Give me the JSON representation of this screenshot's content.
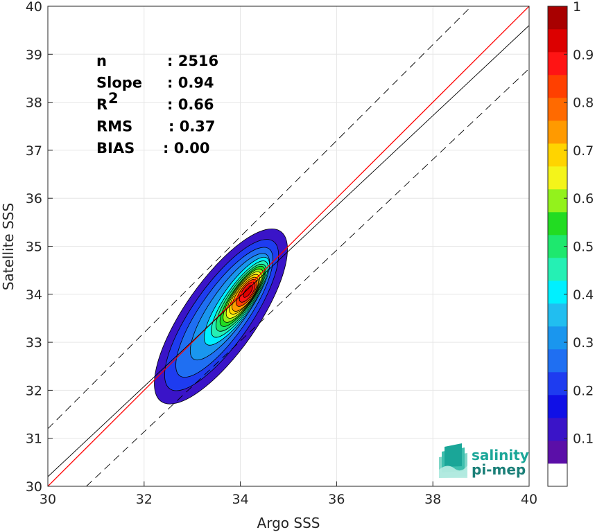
{
  "chart_data": {
    "type": "contour",
    "xlabel": "Argo SSS",
    "ylabel": "Satellite SSS",
    "xlim": [
      30,
      40
    ],
    "ylim": [
      30,
      40
    ],
    "xticks": [
      "30",
      "32",
      "34",
      "36",
      "38",
      "40"
    ],
    "yticks": [
      "30",
      "31",
      "32",
      "33",
      "34",
      "35",
      "36",
      "37",
      "38",
      "39",
      "40"
    ],
    "grid": true,
    "density_peak": {
      "x": 34.1,
      "y": 34.0
    },
    "lines": [
      {
        "role": "one-to-one",
        "color": "#ff0000",
        "style": "solid",
        "points": [
          [
            30,
            30
          ],
          [
            40,
            40
          ]
        ]
      },
      {
        "role": "fit",
        "color": "#000000",
        "style": "solid",
        "points": [
          [
            30,
            30.2
          ],
          [
            40,
            39.6
          ]
        ]
      },
      {
        "role": "upper-bound",
        "color": "#000000",
        "style": "dashed",
        "points": [
          [
            30,
            31.2
          ],
          [
            40,
            41.2
          ]
        ]
      },
      {
        "role": "lower-bound",
        "color": "#000000",
        "style": "dashed",
        "points": [
          [
            30.8,
            30
          ],
          [
            40,
            38.7
          ]
        ]
      }
    ],
    "colorbar": {
      "range": [
        0,
        1
      ],
      "ticks": [
        "0.1",
        "0.2",
        "0.3",
        "0.4",
        "0.5",
        "0.6",
        "0.7",
        "0.8",
        "0.9",
        "1"
      ],
      "colors": [
        "#ffffff",
        "#5b0fa8",
        "#3a14c8",
        "#1010e6",
        "#1e3cf0",
        "#1f6ff2",
        "#1a96ee",
        "#21bef0",
        "#00f0ff",
        "#25f0b4",
        "#1ee86e",
        "#22dc22",
        "#93f21c",
        "#f4f41a",
        "#ffd400",
        "#ff9a00",
        "#ff6a00",
        "#ff4000",
        "#ff1414",
        "#dc0000",
        "#a80000"
      ]
    },
    "stats": [
      {
        "label": "n",
        "value": ": 2516"
      },
      {
        "label": "Slope",
        "value": ": 0.94"
      },
      {
        "label": "R",
        "sup": "2",
        "value": ": 0.66"
      },
      {
        "label": "RMS",
        "value": ": 0.37"
      },
      {
        "label": "BIAS",
        "value": ": 0.00"
      }
    ]
  },
  "logo": {
    "line1": "salinity",
    "line2": "pi-mep"
  }
}
